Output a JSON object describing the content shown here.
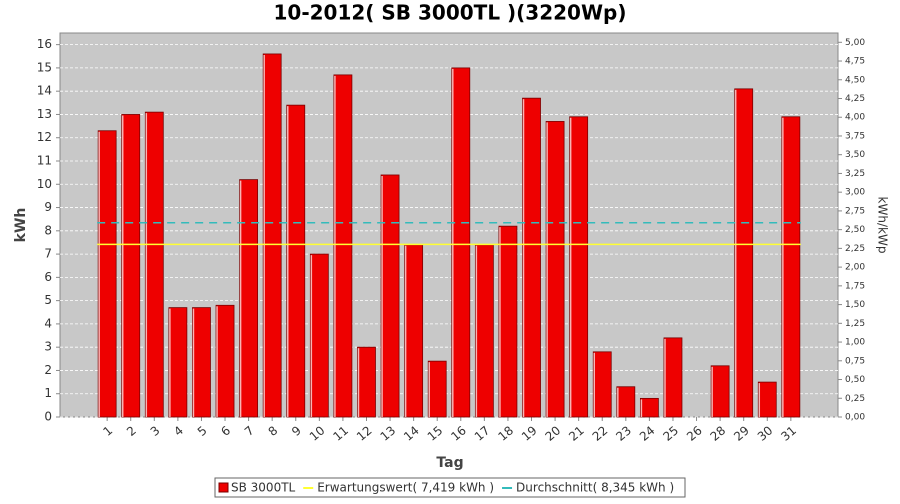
{
  "chart_data": {
    "type": "bar",
    "title": "10-2012( SB 3000TL )(3220Wp)",
    "x_label": "Tag",
    "y_label": "kWh",
    "y2_label": "kWh/kWp",
    "categories": [
      "1",
      "2",
      "3",
      "4",
      "5",
      "6",
      "7",
      "8",
      "9",
      "10",
      "11",
      "12",
      "13",
      "14",
      "15",
      "16",
      "17",
      "18",
      "19",
      "20",
      "21",
      "22",
      "23",
      "24",
      "25",
      "26",
      "28",
      "29",
      "30",
      "31"
    ],
    "series": [
      {
        "name": "SB 3000TL",
        "color": "#ee0000",
        "values": [
          12.3,
          13.0,
          13.1,
          4.7,
          4.7,
          4.8,
          10.2,
          15.6,
          13.4,
          7.0,
          14.7,
          3.0,
          10.4,
          7.4,
          2.4,
          15.0,
          7.4,
          8.2,
          13.7,
          12.7,
          12.9,
          2.8,
          1.3,
          0.8,
          3.4,
          0,
          2.2,
          14.1,
          1.5,
          12.9
        ]
      }
    ],
    "reference_lines": [
      {
        "name": "Erwartungswert( 7,419 kWh )",
        "value": 7.419,
        "color": "#ffff33",
        "dash": false
      },
      {
        "name": "Durchschnitt( 8,345 kWh )",
        "value": 8.345,
        "color": "#33bbbb",
        "dash": true
      }
    ],
    "ylim": [
      0,
      16.5
    ],
    "yticks": [
      0,
      1,
      2,
      3,
      4,
      5,
      6,
      7,
      8,
      9,
      10,
      11,
      12,
      13,
      14,
      15,
      16
    ],
    "y2lim": [
      0,
      5.124
    ],
    "y2ticks": [
      {
        "value": 0,
        "label": "0,00"
      },
      {
        "value": 0.25,
        "label": "0,25"
      },
      {
        "value": 0.5,
        "label": "0,50"
      },
      {
        "value": 0.75,
        "label": "0,75"
      },
      {
        "value": 1,
        "label": "1,00"
      },
      {
        "value": 1.25,
        "label": "1,25"
      },
      {
        "value": 1.5,
        "label": "1,50"
      },
      {
        "value": 1.75,
        "label": "1,75"
      },
      {
        "value": 2,
        "label": "2,00"
      },
      {
        "value": 2.25,
        "label": "2,25"
      },
      {
        "value": 2.5,
        "label": "2,50"
      },
      {
        "value": 2.75,
        "label": "2,75"
      },
      {
        "value": 3,
        "label": "3,00"
      },
      {
        "value": 3.25,
        "label": "3,25"
      },
      {
        "value": 3.5,
        "label": "3,50"
      },
      {
        "value": 3.75,
        "label": "3,75"
      },
      {
        "value": 4,
        "label": "4,00"
      },
      {
        "value": 4.25,
        "label": "4,25"
      },
      {
        "value": 4.5,
        "label": "4,50"
      },
      {
        "value": 4.75,
        "label": "4,75"
      },
      {
        "value": 5,
        "label": "5,00"
      }
    ],
    "grid": true,
    "plot_background": "#c8c8c8"
  }
}
